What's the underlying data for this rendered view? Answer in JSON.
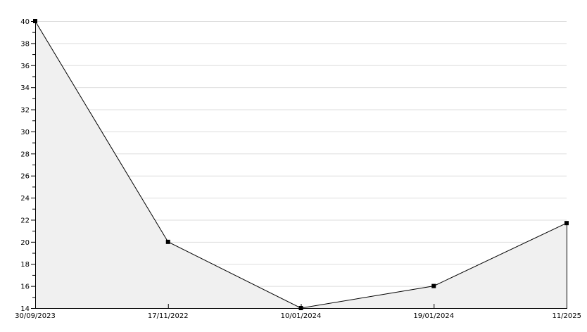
{
  "chart_data": {
    "type": "area",
    "categories": [
      "30/09/2023",
      "17/11/2022",
      "10/01/2024",
      "19/01/2024",
      "11/2025"
    ],
    "values": [
      40,
      20,
      14,
      16,
      21.7
    ],
    "ylim": [
      14,
      40
    ],
    "yticks": [
      14,
      16,
      18,
      20,
      22,
      24,
      26,
      28,
      30,
      32,
      34,
      36,
      38,
      40
    ],
    "grid": true,
    "colors": {
      "fill": "#f0f0f0",
      "line": "#000000",
      "grid": "#dddddd"
    }
  }
}
